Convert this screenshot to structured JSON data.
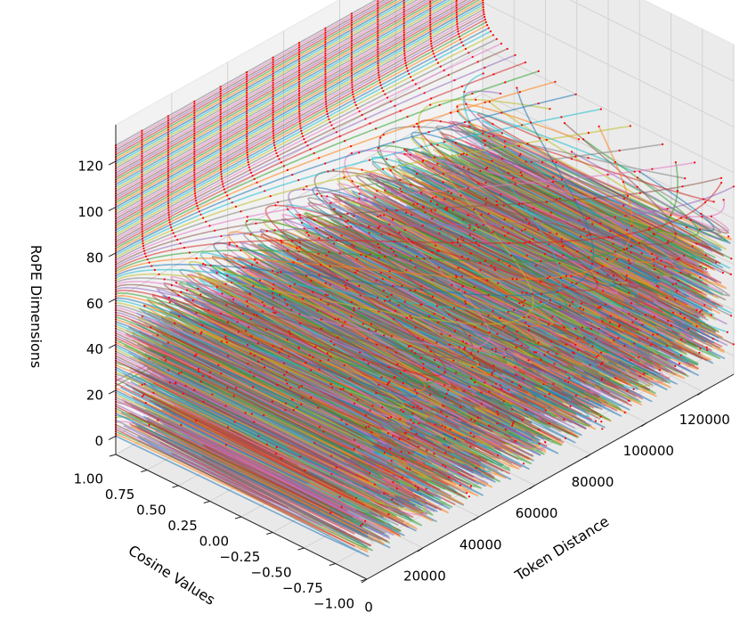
{
  "chart_data": {
    "type": "line-3d",
    "xlabel": "Token Distance",
    "ylabel": "Cosine Values",
    "zlabel": "RoPE Dimensions",
    "xlim": [
      0,
      131072
    ],
    "ylim": [
      -1.0,
      1.0
    ],
    "zlim": [
      -8,
      136
    ],
    "x_ticks": [
      {
        "value": 0,
        "label": "0"
      },
      {
        "value": 20000,
        "label": "20000"
      },
      {
        "value": 40000,
        "label": "40000"
      },
      {
        "value": 60000,
        "label": "60000"
      },
      {
        "value": 80000,
        "label": "80000"
      },
      {
        "value": 100000,
        "label": "100000"
      },
      {
        "value": 120000,
        "label": "120000"
      }
    ],
    "y_ticks": [
      {
        "value": 1.0,
        "label": "1.00"
      },
      {
        "value": 0.75,
        "label": "0.75"
      },
      {
        "value": 0.5,
        "label": "0.50"
      },
      {
        "value": 0.25,
        "label": "0.25"
      },
      {
        "value": 0.0,
        "label": "0.00"
      },
      {
        "value": -0.25,
        "label": "−0.25"
      },
      {
        "value": -0.5,
        "label": "−0.50"
      },
      {
        "value": -0.75,
        "label": "−0.75"
      },
      {
        "value": -1.0,
        "label": "−1.00"
      }
    ],
    "z_ticks": [
      {
        "value": 0,
        "label": "0"
      },
      {
        "value": 20,
        "label": "20"
      },
      {
        "value": 40,
        "label": "40"
      },
      {
        "value": 60,
        "label": "60"
      },
      {
        "value": 80,
        "label": "80"
      },
      {
        "value": 100,
        "label": "100"
      },
      {
        "value": 120,
        "label": "120"
      }
    ],
    "series_rule": "cos(token_distance * theta_d) for each dimension d, theta_d = base^(-2d/dim)",
    "num_dimensions": 128,
    "rope_base": 10000,
    "max_token_distance": 131072,
    "marker_color": "#ff0000",
    "grid": true,
    "pane_color": "#f2f2f2",
    "palette": [
      "#1f77b4",
      "#ff7f0e",
      "#2ca02c",
      "#d62728",
      "#9467bd",
      "#8c564b",
      "#e377c2",
      "#7f7f7f",
      "#bcbd22",
      "#17becf"
    ]
  }
}
